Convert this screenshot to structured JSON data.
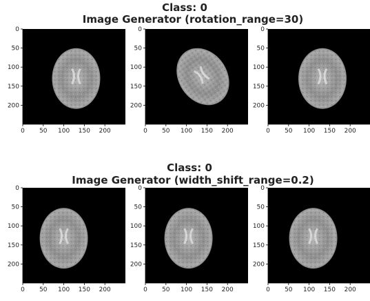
{
  "figures": [
    {
      "heading": "Class: 0",
      "title": "Image Generator (rotation_range=30)"
    },
    {
      "heading": "Class: 0",
      "title": "Image Generator (width_shift_range=0.2)"
    }
  ],
  "axes": {
    "xticks": [
      0,
      50,
      100,
      150,
      200
    ],
    "yticks": [
      0,
      50,
      100,
      150,
      200
    ],
    "xlim": [
      0,
      250
    ],
    "ylim": [
      0,
      250
    ]
  }
}
